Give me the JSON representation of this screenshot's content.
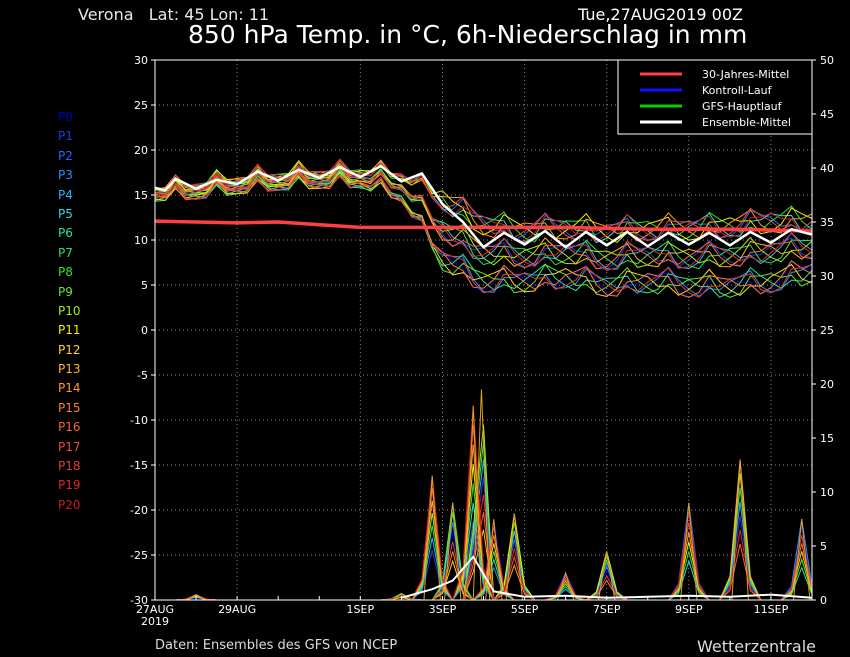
{
  "header": {
    "location": "Verona   Lat: 45 Lon: 11",
    "run": "Tue,27AUG2019 00Z",
    "title": "850 hPa Temp. in °C, 6h-Niederschlag in mm"
  },
  "footer": {
    "source": "Daten: Ensembles des GFS von NCEP",
    "brand": "Wetterzentrale"
  },
  "members": [
    {
      "label": "P0",
      "color": "#0000c8"
    },
    {
      "label": "P1",
      "color": "#1a3ee8"
    },
    {
      "label": "P2",
      "color": "#2a64ff"
    },
    {
      "label": "P3",
      "color": "#2a8cff"
    },
    {
      "label": "P4",
      "color": "#28b4ff"
    },
    {
      "label": "P5",
      "color": "#30d8e8"
    },
    {
      "label": "P6",
      "color": "#2ae0a0"
    },
    {
      "label": "P7",
      "color": "#28e060"
    },
    {
      "label": "P8",
      "color": "#32e032"
    },
    {
      "label": "P9",
      "color": "#64e628"
    },
    {
      "label": "P10",
      "color": "#a0ee20"
    },
    {
      "label": "P11",
      "color": "#f0f000"
    },
    {
      "label": "P12",
      "color": "#ffd22a"
    },
    {
      "label": "P13",
      "color": "#ffb428"
    },
    {
      "label": "P14",
      "color": "#ff9a28"
    },
    {
      "label": "P15",
      "color": "#ff7c28"
    },
    {
      "label": "P16",
      "color": "#ff6430"
    },
    {
      "label": "P17",
      "color": "#f04a30"
    },
    {
      "label": "P18",
      "color": "#e63c28"
    },
    {
      "label": "P19",
      "color": "#dc2828"
    },
    {
      "label": "P20",
      "color": "#c81e1e"
    }
  ],
  "legend": [
    {
      "label": "30-Jahres-Mittel",
      "color": "#ff4040"
    },
    {
      "label": "Kontroll-Lauf",
      "color": "#1010ff"
    },
    {
      "label": "GFS-Hauptlauf",
      "color": "#00d000"
    },
    {
      "label": "Ensemble-Mittel",
      "color": "#ffffff"
    }
  ],
  "chart_data": {
    "type": "line",
    "xlabel": "",
    "ylabel": "",
    "y2label": "",
    "x_tick_labels": [
      "27AUG\n2019",
      "29AUG",
      "1SEP",
      "3SEP",
      "5SEP",
      "7SEP",
      "9SEP",
      "11SEP"
    ],
    "x_tick_days": [
      0,
      2,
      5,
      7,
      9,
      11,
      13,
      15
    ],
    "x_range_days": [
      0,
      16
    ],
    "ylim": [
      -30,
      30
    ],
    "y_ticks": [
      30,
      25,
      20,
      15,
      10,
      5,
      0,
      -5,
      -10,
      -15,
      -20,
      -25,
      -30
    ],
    "y2lim": [
      0,
      50
    ],
    "y2_ticks": [
      50,
      45,
      40,
      35,
      30,
      25,
      20,
      15,
      10,
      5,
      0
    ],
    "grid": true,
    "legend_position": "top-right",
    "climatology_30yr_temp": [
      {
        "day": 0,
        "value": 12.1
      },
      {
        "day": 2,
        "value": 11.9
      },
      {
        "day": 3,
        "value": 12.0
      },
      {
        "day": 5,
        "value": 11.4
      },
      {
        "day": 8,
        "value": 11.4
      },
      {
        "day": 10,
        "value": 11.4
      },
      {
        "day": 12,
        "value": 11.2
      },
      {
        "day": 14,
        "value": 11.2
      },
      {
        "day": 16,
        "value": 11.0
      }
    ],
    "ensemble_mean_temp": [
      {
        "day": 0,
        "value": 15.8
      },
      {
        "day": 0.25,
        "value": 15.5
      },
      {
        "day": 0.5,
        "value": 16.8
      },
      {
        "day": 1,
        "value": 15.7
      },
      {
        "day": 1.5,
        "value": 16.7
      },
      {
        "day": 2,
        "value": 16.2
      },
      {
        "day": 2.5,
        "value": 17.6
      },
      {
        "day": 3,
        "value": 16.6
      },
      {
        "day": 3.5,
        "value": 17.8
      },
      {
        "day": 4,
        "value": 16.9
      },
      {
        "day": 4.5,
        "value": 18.1
      },
      {
        "day": 5,
        "value": 17.0
      },
      {
        "day": 5.5,
        "value": 18.2
      },
      {
        "day": 6,
        "value": 16.5
      },
      {
        "day": 6.5,
        "value": 17.4
      },
      {
        "day": 7,
        "value": 14.0
      },
      {
        "day": 7.5,
        "value": 12.0
      },
      {
        "day": 8,
        "value": 9.2
      },
      {
        "day": 8.5,
        "value": 10.8
      },
      {
        "day": 9,
        "value": 9.5
      },
      {
        "day": 9.5,
        "value": 11.0
      },
      {
        "day": 10,
        "value": 9.2
      },
      {
        "day": 10.5,
        "value": 10.9
      },
      {
        "day": 11,
        "value": 9.4
      },
      {
        "day": 11.5,
        "value": 10.9
      },
      {
        "day": 12,
        "value": 9.3
      },
      {
        "day": 12.5,
        "value": 10.8
      },
      {
        "day": 13,
        "value": 9.5
      },
      {
        "day": 13.5,
        "value": 10.8
      },
      {
        "day": 14,
        "value": 9.4
      },
      {
        "day": 14.5,
        "value": 10.9
      },
      {
        "day": 15,
        "value": 9.7
      },
      {
        "day": 15.5,
        "value": 11.2
      },
      {
        "day": 16,
        "value": 10.6
      }
    ],
    "spread_low_temp": [
      15.0,
      15.2,
      15.8,
      16.2,
      16.4,
      16.5,
      15.0,
      8.0,
      5.5,
      5.5,
      6.0,
      5.0,
      5.5,
      5.0,
      5.0,
      5.5,
      6.5
    ],
    "spread_high_temp": [
      16.2,
      16.8,
      17.5,
      18.0,
      18.3,
      18.5,
      18.5,
      17.5,
      14.5,
      13.5,
      13.8,
      13.5,
      13.8,
      14.0,
      14.5,
      15.0,
      14.5
    ],
    "precip_mm_peaks": [
      {
        "day": 1,
        "value": 0.5
      },
      {
        "day": 6,
        "value": 0.6
      },
      {
        "day": 6.75,
        "value": 11.5
      },
      {
        "day": 7.25,
        "value": 9.0
      },
      {
        "day": 7.75,
        "value": 18.0
      },
      {
        "day": 7.95,
        "value": 19.5
      },
      {
        "day": 8.25,
        "value": 7.5
      },
      {
        "day": 8.75,
        "value": 8.0
      },
      {
        "day": 10,
        "value": 2.5
      },
      {
        "day": 11,
        "value": 4.5
      },
      {
        "day": 13,
        "value": 9.0
      },
      {
        "day": 14.25,
        "value": 13.0
      },
      {
        "day": 15.75,
        "value": 7.5
      }
    ],
    "ensemble_mean_precip": [
      {
        "day": 6,
        "value": 0.2
      },
      {
        "day": 6.75,
        "value": 1.0
      },
      {
        "day": 7.25,
        "value": 1.8
      },
      {
        "day": 7.75,
        "value": 4.0
      },
      {
        "day": 8.25,
        "value": 0.8
      },
      {
        "day": 9,
        "value": 0.3
      },
      {
        "day": 10,
        "value": 0.4
      },
      {
        "day": 11,
        "value": 0.2
      },
      {
        "day": 12,
        "value": 0.3
      },
      {
        "day": 13,
        "value": 0.4
      },
      {
        "day": 14,
        "value": 0.3
      },
      {
        "day": 15,
        "value": 0.5
      },
      {
        "day": 16,
        "value": 0.2
      }
    ]
  }
}
